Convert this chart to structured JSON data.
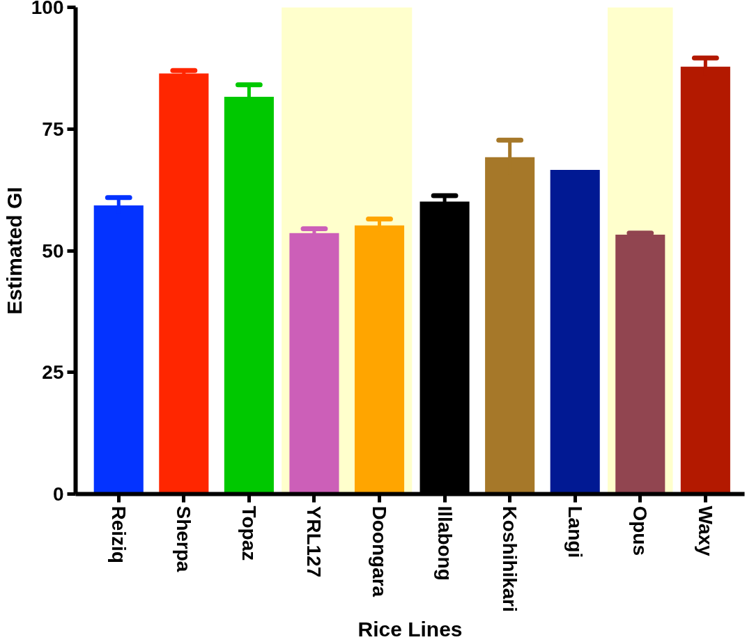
{
  "chart_data": {
    "type": "bar",
    "xlabel": "Rice Lines",
    "ylabel": "Estimated GI",
    "categories": [
      "Reiziq",
      "Sherpa",
      "Topaz",
      "YRL127",
      "Doongara",
      "Illabong",
      "Koshihikari",
      "Langi",
      "Opus",
      "Waxy"
    ],
    "values": [
      59.3,
      86.4,
      81.6,
      53.6,
      55.2,
      60.1,
      69.2,
      66.6,
      53.3,
      87.8
    ],
    "errors": [
      1.6,
      0.6,
      2.5,
      0.9,
      1.3,
      1.2,
      3.5,
      null,
      0.3,
      1.8
    ],
    "colors": [
      "#0433ff",
      "#ff2600",
      "#00c800",
      "#cc5fb8",
      "#ffa500",
      "#000000",
      "#a67829",
      "#011993",
      "#914550",
      "#b31900"
    ],
    "ylim": [
      0,
      100
    ],
    "yticks": [
      0,
      25,
      50,
      75,
      100
    ],
    "grid": false,
    "bands": [
      {
        "axis": "x",
        "from": "YRL127",
        "to": "Doongara",
        "color": "#ffffcc"
      },
      {
        "axis": "x",
        "from": "Opus",
        "to": "Opus",
        "color": "#ffffcc"
      }
    ]
  }
}
